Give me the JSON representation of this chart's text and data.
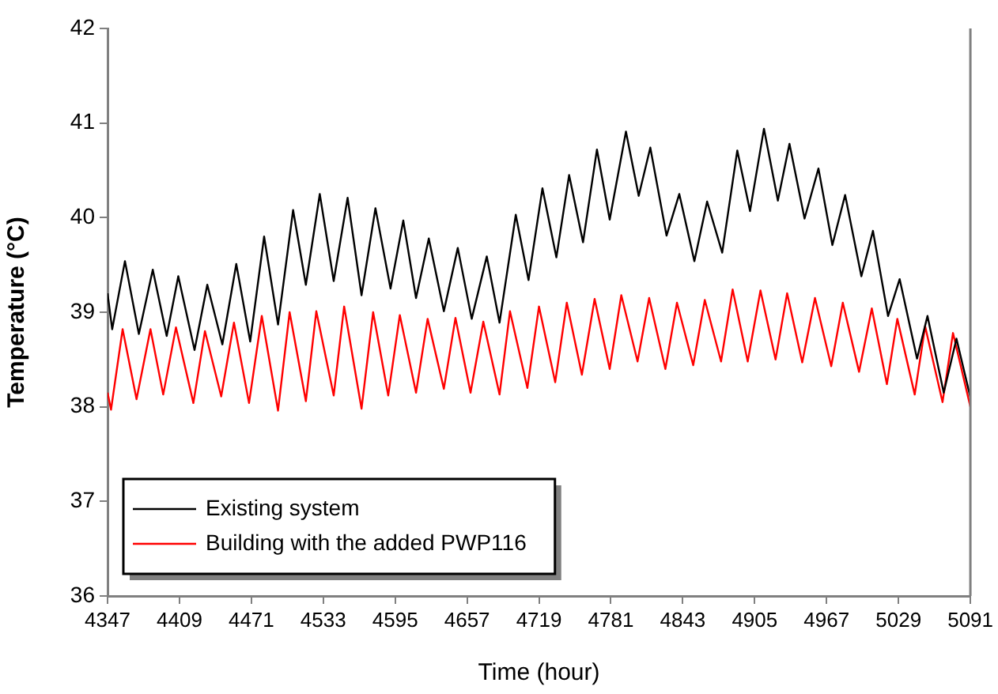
{
  "chart_data": {
    "type": "line",
    "xlabel": "Time (hour)",
    "ylabel": "Temperature (°C)",
    "xlim": [
      4347,
      5091
    ],
    "xticks": [
      4347,
      4409,
      4471,
      4533,
      4595,
      4657,
      4719,
      4781,
      4843,
      4905,
      4967,
      5029,
      5091
    ],
    "ylim": [
      36,
      42
    ],
    "yticks": [
      36,
      37,
      38,
      39,
      40,
      41,
      42
    ],
    "grid": false,
    "legend": "bottom left",
    "marker": "none",
    "line_style": "solid",
    "series": [
      {
        "name": "Existing system",
        "color": "#000000",
        "x": [
          4347,
          4351,
          4362,
          4374,
          4386,
          4398,
          4408,
          4422,
          4433,
          4446,
          4458,
          4470,
          4482,
          4494,
          4507,
          4518,
          4530,
          4542,
          4554,
          4566,
          4578,
          4591,
          4602,
          4613,
          4624,
          4637,
          4649,
          4661,
          4674,
          4685,
          4699,
          4710,
          4722,
          4734,
          4745,
          4757,
          4769,
          4780,
          4794,
          4805,
          4815,
          4829,
          4840,
          4853,
          4864,
          4877,
          4890,
          4901,
          4913,
          4925,
          4935,
          4948,
          4960,
          4972,
          4983,
          4997,
          5007,
          5020,
          5030,
          5045,
          5054,
          5068,
          5079,
          5091
        ],
        "values": [
          39.2,
          38.82,
          39.54,
          38.77,
          39.45,
          38.75,
          39.38,
          38.6,
          39.29,
          38.66,
          39.51,
          38.69,
          39.8,
          38.87,
          40.08,
          39.29,
          40.25,
          39.33,
          40.21,
          39.18,
          40.1,
          39.25,
          39.97,
          39.15,
          39.78,
          39.01,
          39.68,
          38.93,
          39.59,
          38.89,
          40.03,
          39.34,
          40.31,
          39.58,
          40.45,
          39.74,
          40.72,
          39.98,
          40.91,
          40.23,
          40.74,
          39.81,
          40.25,
          39.54,
          40.17,
          39.63,
          40.71,
          40.07,
          40.94,
          40.18,
          40.78,
          39.99,
          40.52,
          39.71,
          40.24,
          39.38,
          39.86,
          38.96,
          39.35,
          38.51,
          38.96,
          38.15,
          38.72,
          38.1
        ]
      },
      {
        "name": "Building with the added PWP116",
        "color": "#ff0000",
        "x": [
          4347,
          4350,
          4360,
          4372,
          4384,
          4395,
          4406,
          4421,
          4431,
          4445,
          4456,
          4469,
          4480,
          4494,
          4504,
          4518,
          4527,
          4542,
          4551,
          4566,
          4576,
          4589,
          4599,
          4613,
          4623,
          4637,
          4647,
          4660,
          4671,
          4685,
          4694,
          4709,
          4719,
          4733,
          4743,
          4756,
          4767,
          4780,
          4790,
          4804,
          4814,
          4828,
          4838,
          4852,
          4862,
          4876,
          4886,
          4899,
          4910,
          4923,
          4933,
          4946,
          4957,
          4971,
          4981,
          4995,
          5006,
          5019,
          5028,
          5043,
          5052,
          5067,
          5076,
          5091
        ],
        "values": [
          38.15,
          37.97,
          38.82,
          38.08,
          38.82,
          38.13,
          38.84,
          38.04,
          38.8,
          38.11,
          38.89,
          38.04,
          38.96,
          37.96,
          39.0,
          38.06,
          39.01,
          38.12,
          39.06,
          37.98,
          39.0,
          38.12,
          38.97,
          38.15,
          38.93,
          38.19,
          38.94,
          38.15,
          38.9,
          38.13,
          39.01,
          38.2,
          39.06,
          38.26,
          39.1,
          38.34,
          39.14,
          38.4,
          39.18,
          38.48,
          39.15,
          38.4,
          39.1,
          38.44,
          39.13,
          38.48,
          39.24,
          38.48,
          39.23,
          38.5,
          39.2,
          38.47,
          39.15,
          38.43,
          39.1,
          38.37,
          39.04,
          38.24,
          38.93,
          38.13,
          38.85,
          38.05,
          38.78,
          38.0
        ]
      }
    ]
  }
}
